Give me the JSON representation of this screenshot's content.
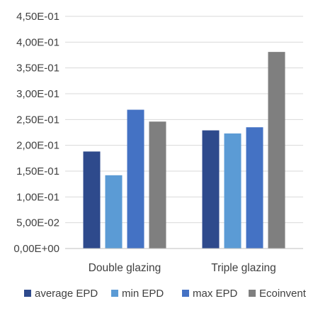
{
  "chart_data": {
    "type": "bar",
    "title": "",
    "xlabel": "",
    "ylabel": "",
    "categories": [
      "Double glazing",
      "Triple glazing"
    ],
    "series": [
      {
        "name": "average EPD",
        "color": "#2E4A8C",
        "values": [
          0.188,
          0.229
        ]
      },
      {
        "name": "min EPD",
        "color": "#5B9BD5",
        "values": [
          0.142,
          0.223
        ]
      },
      {
        "name": "max EPD",
        "color": "#4472C4",
        "values": [
          0.269,
          0.235
        ]
      },
      {
        "name": "Ecoinvent",
        "color": "#7F7F7F",
        "values": [
          0.246,
          0.381
        ]
      }
    ],
    "ylim": [
      0,
      0.45
    ],
    "yticks": [
      0,
      0.05,
      0.1,
      0.15,
      0.2,
      0.25,
      0.3,
      0.35,
      0.4,
      0.45
    ],
    "ytick_labels": [
      "0,00E+00",
      "5,00E-02",
      "1,00E-01",
      "1,50E-01",
      "2,00E-01",
      "2,50E-01",
      "3,00E-01",
      "3,50E-01",
      "4,00E-01",
      "4,50E-01"
    ],
    "grid": true,
    "legend_position": "bottom"
  }
}
